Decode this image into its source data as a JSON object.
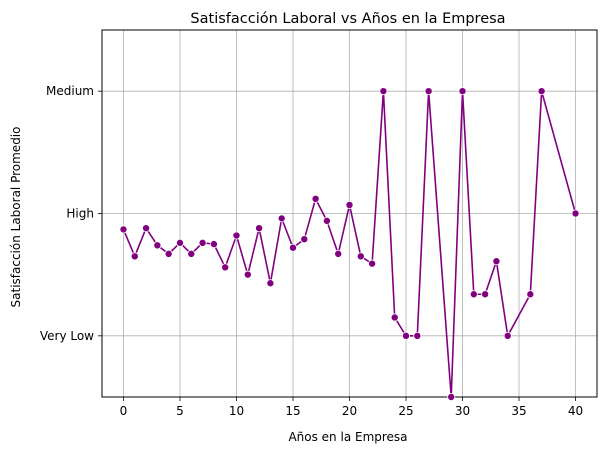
{
  "chart_data": {
    "type": "line",
    "title": "Satisfacción Laboral vs Años en la Empresa",
    "xlabel": "Años en la Empresa",
    "ylabel": "Satisfacción Laboral Promedio",
    "xlim": [
      -1.9,
      41.9
    ],
    "ylim": [
      -0.5,
      2.5
    ],
    "xticks": [
      0,
      5,
      10,
      15,
      20,
      25,
      30,
      35,
      40
    ],
    "xtick_labels": [
      "0",
      "5",
      "10",
      "15",
      "20",
      "25",
      "30",
      "35",
      "40"
    ],
    "yticks": [
      0,
      1,
      2
    ],
    "ytick_labels": [
      "Very Low",
      "High",
      "Medium"
    ],
    "grid": true,
    "legend": false,
    "line_color": "#800080",
    "marker": "circle",
    "series": [
      {
        "x": [
          0,
          1,
          2,
          3,
          4,
          5,
          6,
          7,
          8,
          9,
          10,
          11,
          12,
          13,
          14,
          15,
          16,
          17,
          18,
          19,
          20,
          21,
          22,
          23,
          24,
          25,
          26,
          27,
          29,
          30,
          31,
          32,
          33,
          34,
          36,
          37,
          40
        ],
        "y": [
          0.87,
          0.65,
          0.88,
          0.74,
          0.67,
          0.76,
          0.67,
          0.76,
          0.75,
          0.56,
          0.82,
          0.5,
          0.88,
          0.43,
          0.96,
          0.72,
          0.79,
          1.12,
          0.94,
          0.67,
          1.07,
          0.65,
          0.59,
          2.0,
          0.15,
          0.0,
          0.0,
          2.0,
          -0.5,
          2.0,
          0.34,
          0.34,
          0.61,
          0.0,
          0.34,
          2.0,
          1.0
        ]
      }
    ]
  }
}
